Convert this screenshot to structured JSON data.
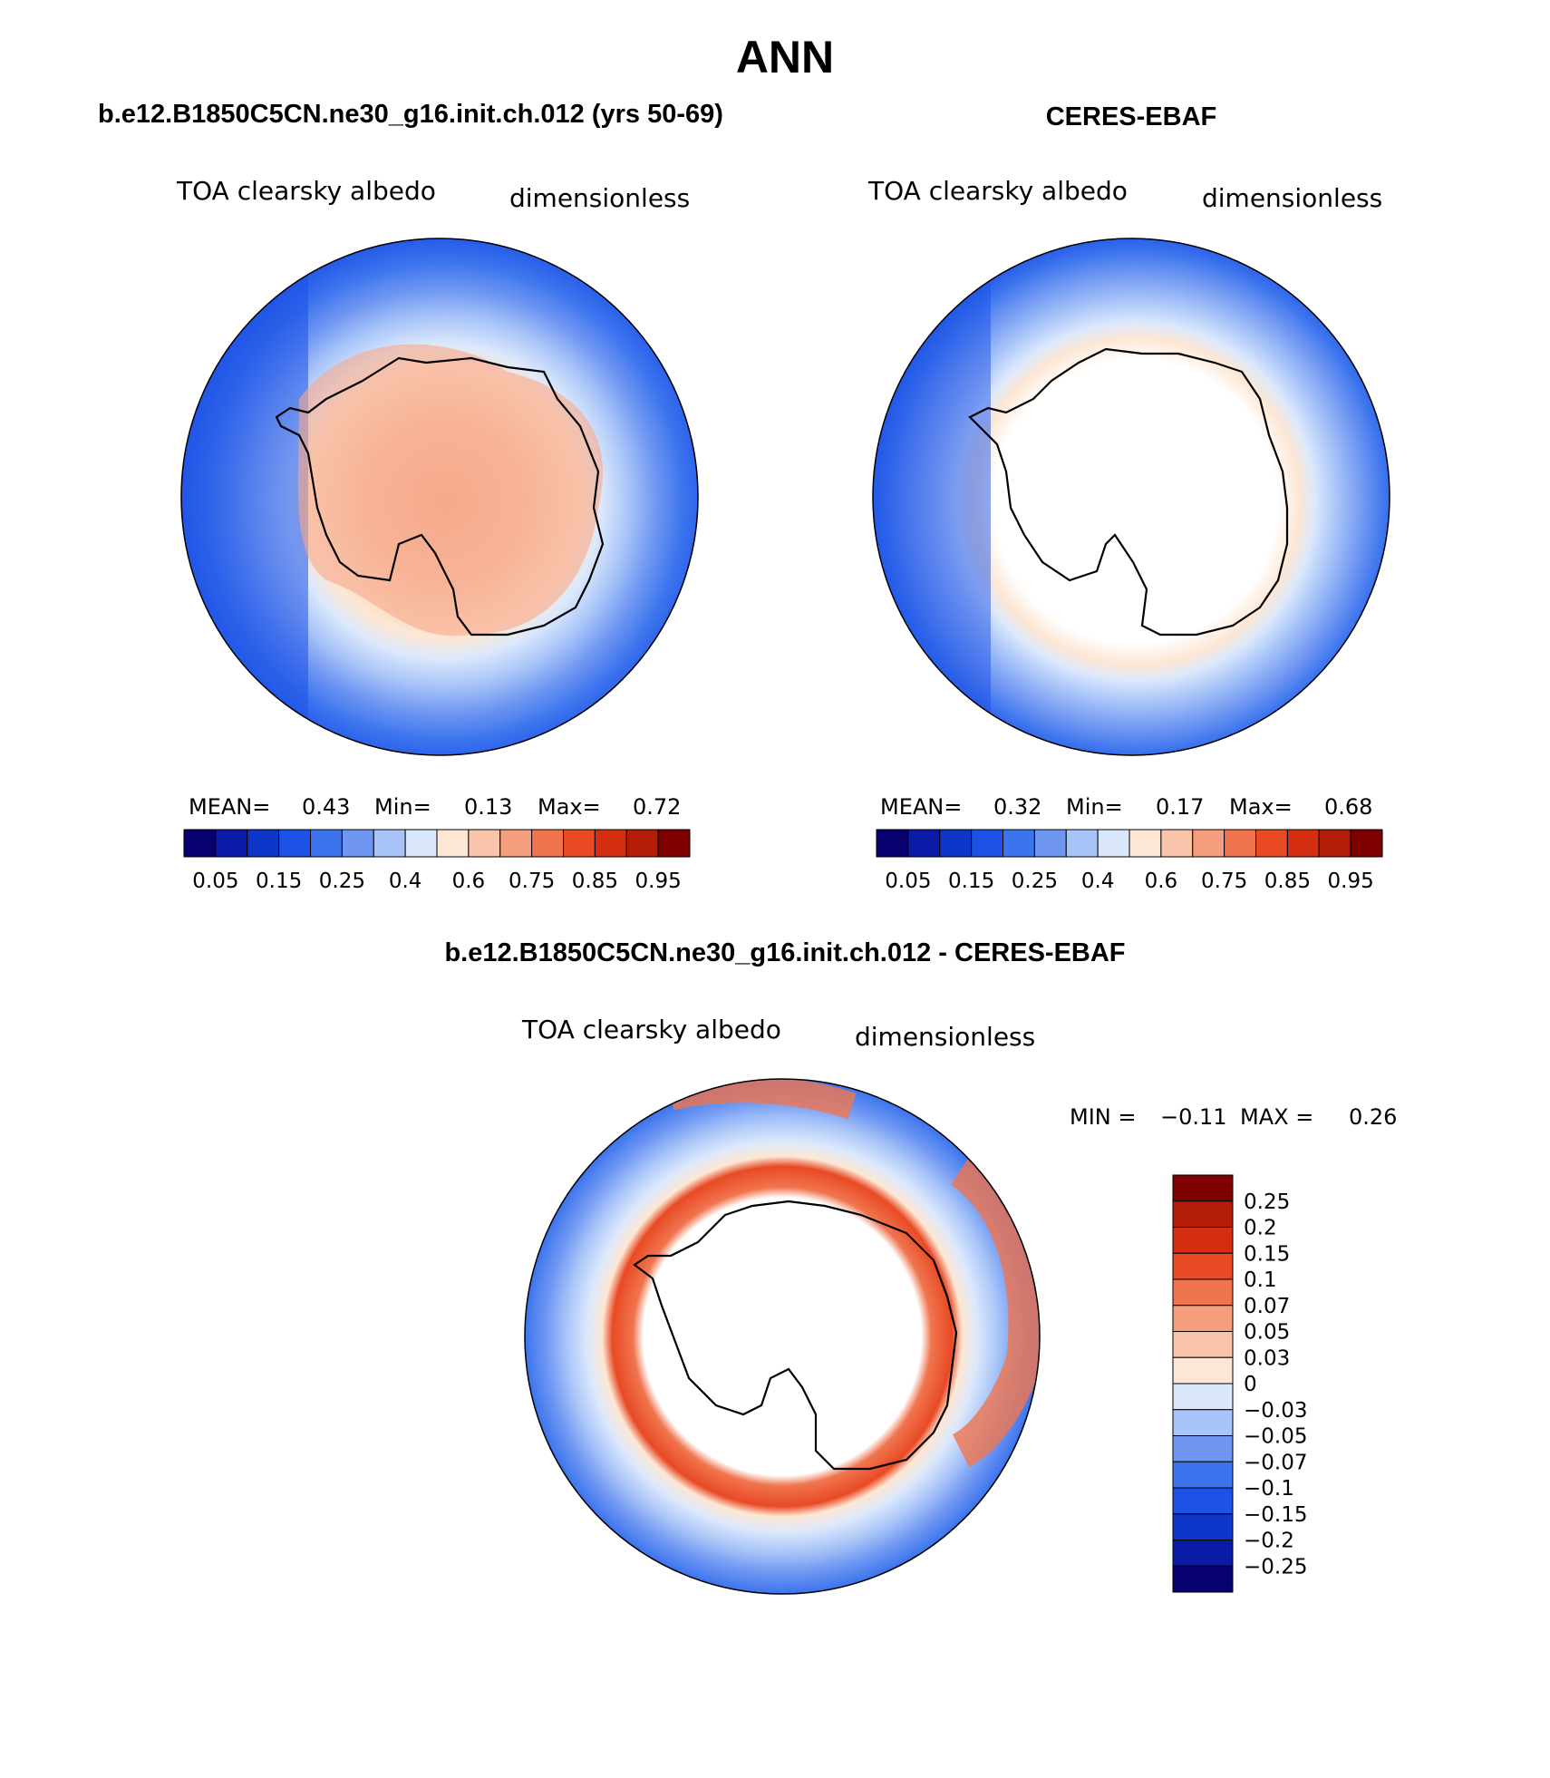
{
  "page": {
    "season": "ANN",
    "left_title": "b.e12.B1850C5CN.ne30_g16.init.ch.012 (yrs 50-69)",
    "right_title": "CERES-EBAF",
    "diff_title": "b.e12.B1850C5CN.ne30_g16.init.ch.012 - CERES-EBAF"
  },
  "panels": [
    {
      "id": "model",
      "variable": "TOA clearsky albedo",
      "units": "dimensionless",
      "stats": {
        "mean_label": "MEAN=",
        "mean": "0.43",
        "min_label": "Min=",
        "min": "0.13",
        "max_label": "Max=",
        "max": "0.72"
      }
    },
    {
      "id": "obs",
      "variable": "TOA clearsky albedo",
      "units": "dimensionless",
      "stats": {
        "mean_label": "MEAN=",
        "mean": "0.32",
        "min_label": "Min=",
        "min": "0.17",
        "max_label": "Max=",
        "max": "0.68"
      }
    },
    {
      "id": "diff",
      "variable": "TOA clearsky albedo",
      "units": "dimensionless",
      "stats": {
        "min_label": "MIN =",
        "min": "−0.11",
        "max_label": "MAX =",
        "max": "0.26"
      }
    }
  ],
  "colorbar_abs": {
    "colors": [
      "#08006e",
      "#0a1ba8",
      "#0e36c8",
      "#1d52e6",
      "#3c74ee",
      "#6f97f2",
      "#a8c4f8",
      "#dbe8fc",
      "#fde7d4",
      "#f9c4a9",
      "#f59e7d",
      "#f0754f",
      "#e84a24",
      "#d42e11",
      "#b31d07",
      "#7f0000"
    ],
    "ticks": [
      "0.05",
      "0.15",
      "0.25",
      "0.4",
      "0.6",
      "0.75",
      "0.85",
      "0.95"
    ]
  },
  "colorbar_diff": {
    "colors": [
      "#08006e",
      "#0a1ba8",
      "#0e36c8",
      "#1d52e6",
      "#3c74ee",
      "#6f97f2",
      "#a8c4f8",
      "#dbe8fc",
      "#fde7d4",
      "#f9c4a9",
      "#f59e7d",
      "#f0754f",
      "#e84a24",
      "#d42e11",
      "#b31d07",
      "#7f0000"
    ],
    "ticks": [
      "0.25",
      "0.2",
      "0.15",
      "0.1",
      "0.07",
      "0.05",
      "0.03",
      "0",
      "−0.03",
      "−0.05",
      "−0.07",
      "−0.1",
      "−0.15",
      "−0.2",
      "−0.25"
    ]
  }
}
